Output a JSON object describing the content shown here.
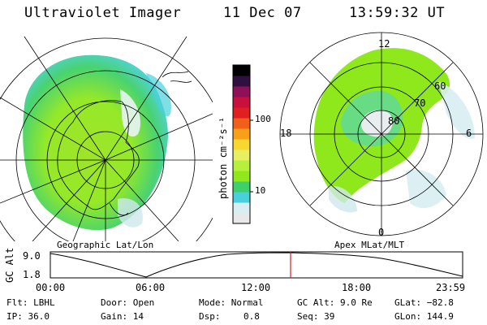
{
  "header": {
    "title": "Ultraviolet Imager",
    "date": "11 Dec 07",
    "time": "13:59:32 UT"
  },
  "left_panel": {
    "caption": "Geographic Lat/Lon"
  },
  "right_panel": {
    "caption": "Apex MLat/MLT",
    "mlt_labels": {
      "top": "12",
      "right": "6",
      "bottom": "0",
      "left": "18"
    },
    "lat_labels": [
      "60",
      "70",
      "80"
    ]
  },
  "colorbar": {
    "unit_label": "photon cm⁻²s⁻¹",
    "ticks": [
      "100",
      "10"
    ],
    "colors": [
      "#e8e8e8",
      "#d8eef2",
      "#49d0dc",
      "#3fd06a",
      "#8fe81c",
      "#b6f03c",
      "#e6f060",
      "#f8d830",
      "#f8a018",
      "#f06018",
      "#e02020",
      "#c8103c",
      "#901058",
      "#301040",
      "#000000"
    ]
  },
  "altitude_plot": {
    "ylabel": "GC Alt",
    "yticks": [
      "9.0",
      "1.8"
    ],
    "xticks": [
      "00:00",
      "06:00",
      "12:00",
      "18:00",
      "23:59"
    ],
    "marker_color": "#d02020"
  },
  "info": {
    "filter": "Flt: LBHL",
    "ip": "IP: 36.0",
    "door": "Door: Open",
    "gain": "Gain: 14",
    "mode": "Mode: Normal",
    "dsp_label": "Dsp:",
    "dsp_value": "0.8",
    "gc_alt": "GC Alt: 9.0 Re",
    "seq": "Seq: 39",
    "glat": "GLat: −82.8",
    "glon": "GLon: 144.9"
  }
}
